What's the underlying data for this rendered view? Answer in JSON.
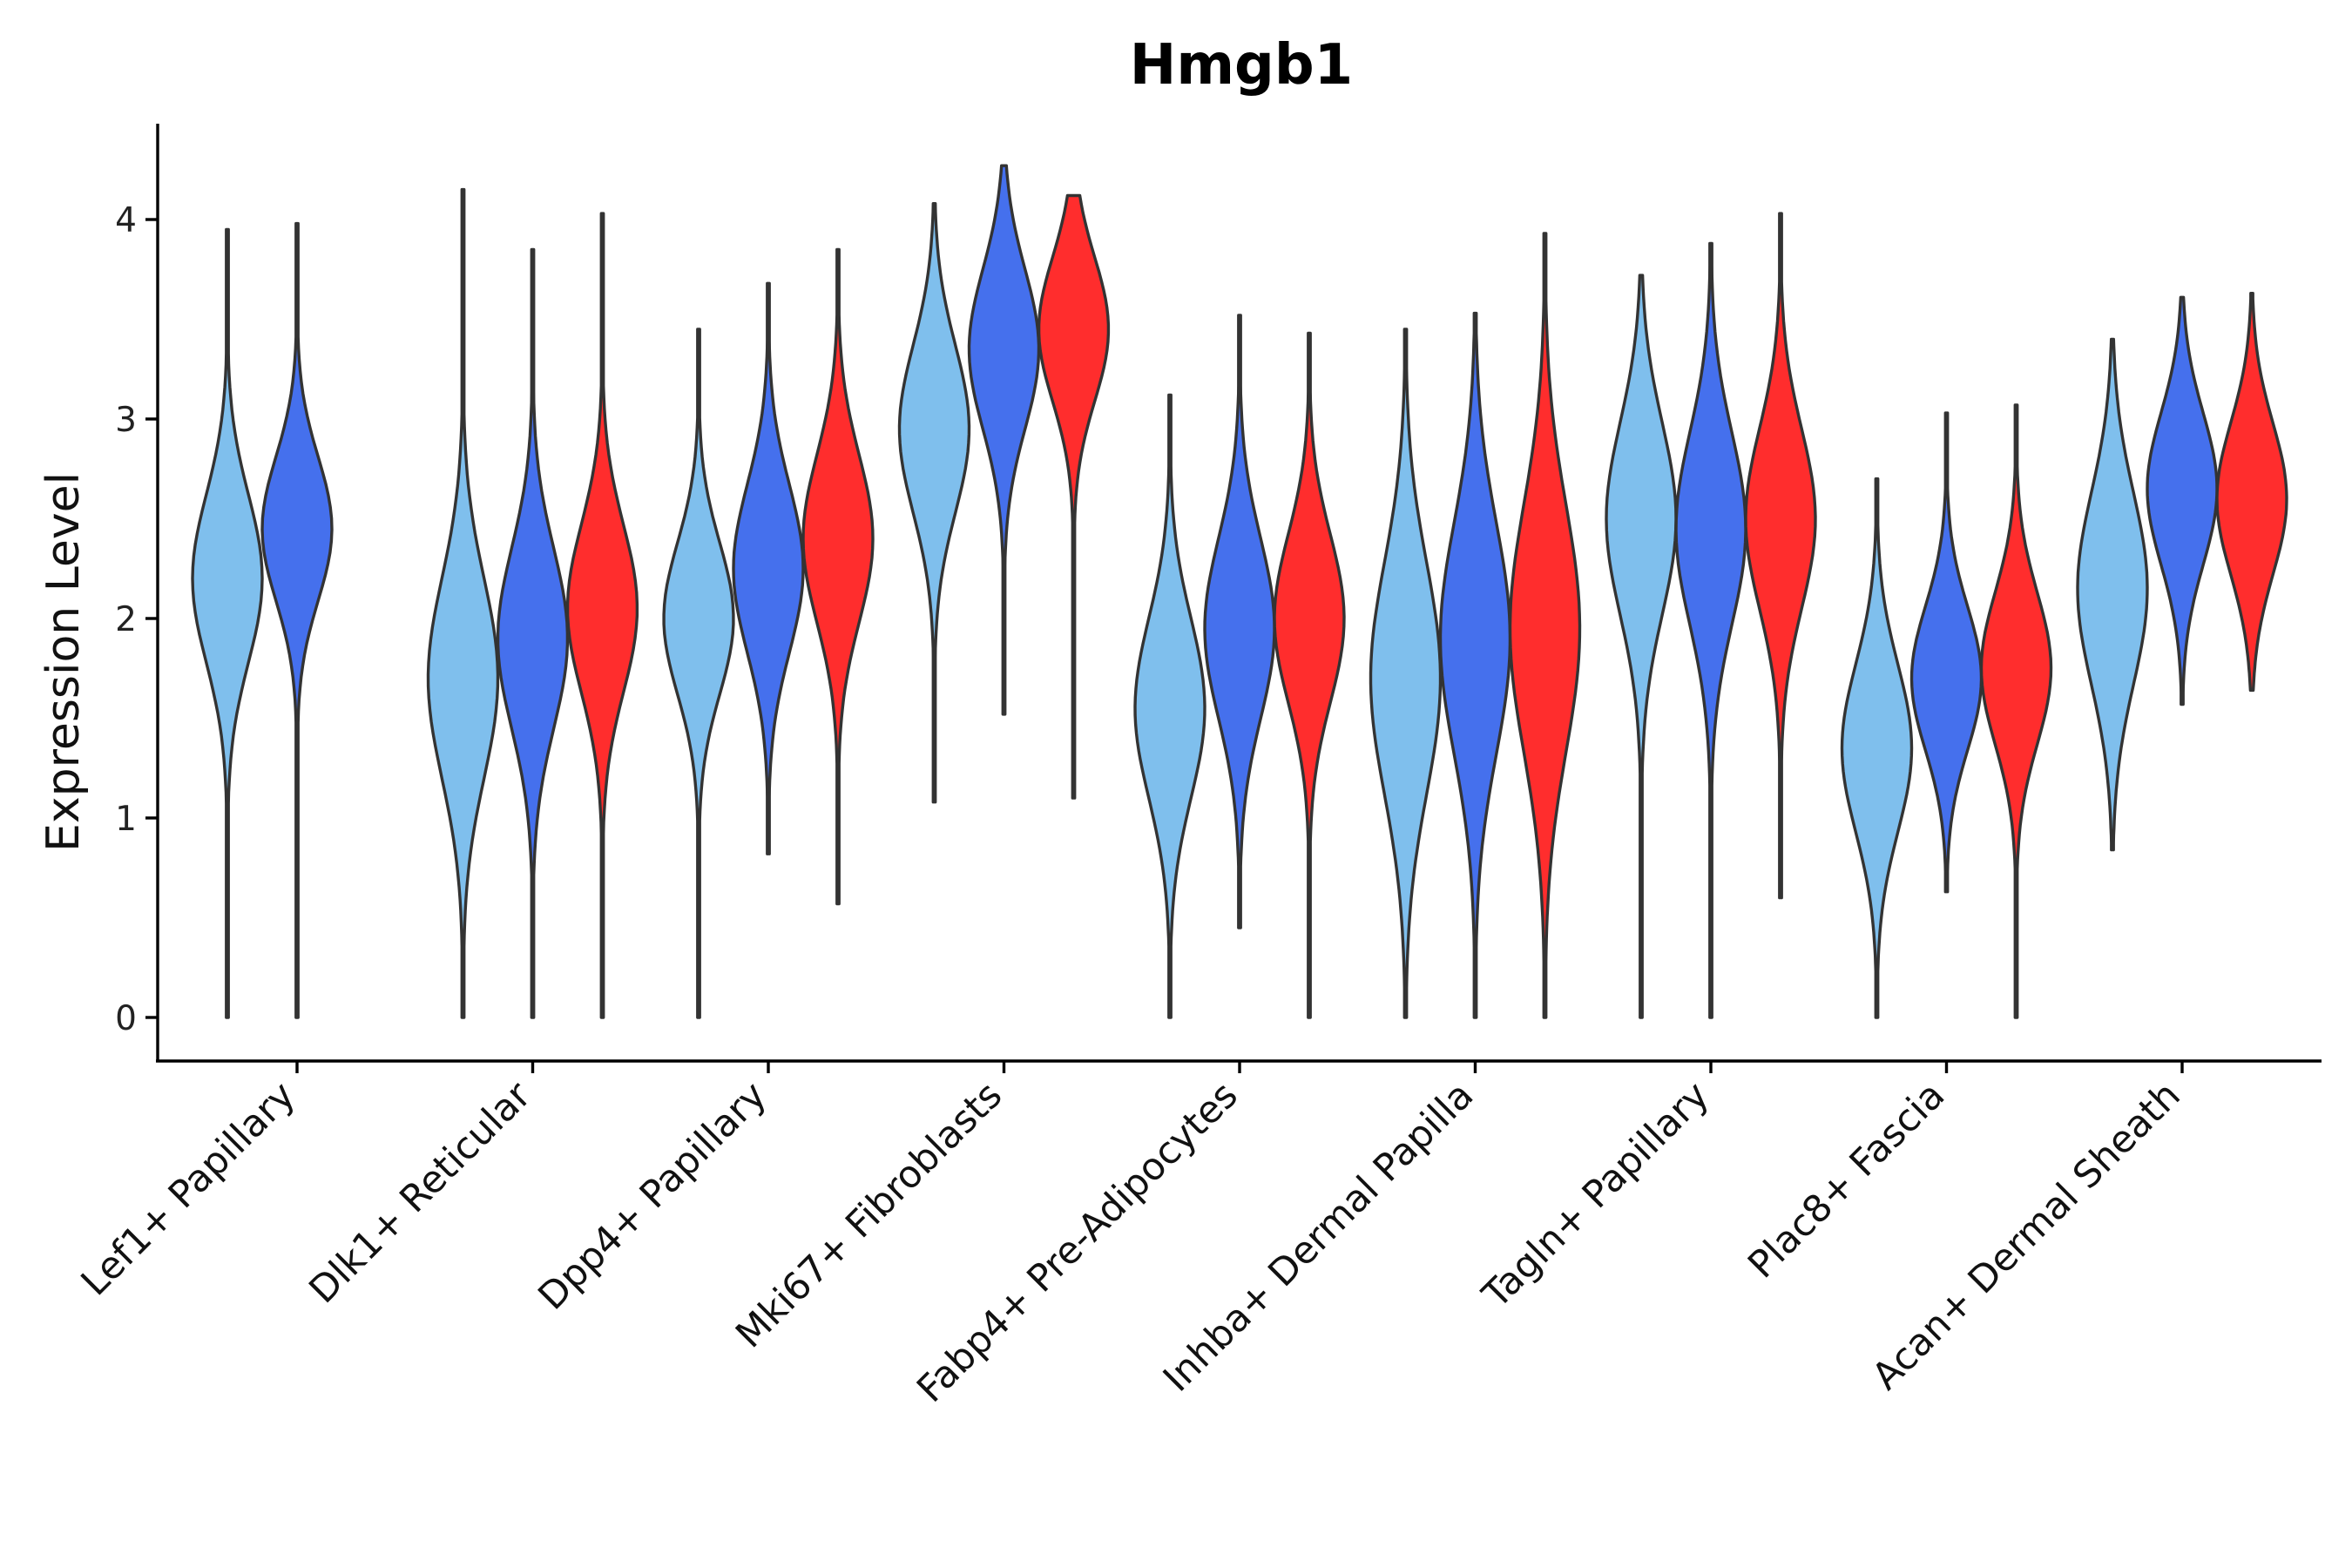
{
  "chart_data": {
    "type": "violin",
    "title": "Hmgb1",
    "xlabel": "",
    "ylabel": "Expression Level",
    "ylim": [
      -0.2,
      4.5
    ],
    "yticks": [
      0,
      1,
      2,
      3,
      4
    ],
    "grid": false,
    "legend": "none",
    "colors": [
      "#7fbfed",
      "#4570ed",
      "#ff2d2d"
    ],
    "categories": [
      "Lef1+ Papillary",
      "Dlk1+ Reticular",
      "Dpp4+ Papillary",
      "Mki67+ Fibroblasts",
      "Fabp4+ Pre-Adipocytes",
      "Inhba+ Dermal Papilla",
      "Tagln+ Papillary",
      "Plac8+ Fascia",
      "Acan+ Dermal Sheath"
    ],
    "violins": [
      {
        "category": 0,
        "group": 0,
        "min": 0,
        "max": 3.95,
        "mode": 2.2,
        "spread": 0.42
      },
      {
        "category": 0,
        "group": 1,
        "min": 0,
        "max": 3.98,
        "mode": 2.45,
        "spread": 0.36
      },
      {
        "category": 1,
        "group": 0,
        "min": 0,
        "max": 4.15,
        "mode": 1.7,
        "spread": 0.5
      },
      {
        "category": 1,
        "group": 1,
        "min": 0,
        "max": 3.85,
        "mode": 1.9,
        "spread": 0.45
      },
      {
        "category": 1,
        "group": 2,
        "min": 0,
        "max": 4.03,
        "mode": 2.05,
        "spread": 0.42
      },
      {
        "category": 2,
        "group": 0,
        "min": 0,
        "max": 3.45,
        "mode": 2.0,
        "spread": 0.38
      },
      {
        "category": 2,
        "group": 1,
        "min": 0.82,
        "max": 3.68,
        "mode": 2.25,
        "spread": 0.42
      },
      {
        "category": 2,
        "group": 2,
        "min": 0.57,
        "max": 3.85,
        "mode": 2.4,
        "spread": 0.42
      },
      {
        "category": 3,
        "group": 0,
        "min": 1.08,
        "max": 4.08,
        "mode": 2.95,
        "spread": 0.42
      },
      {
        "category": 3,
        "group": 1,
        "min": 1.52,
        "max": 4.27,
        "mode": 3.35,
        "spread": 0.4
      },
      {
        "category": 3,
        "group": 2,
        "min": 1.1,
        "max": 4.12,
        "mode": 3.45,
        "spread": 0.36
      },
      {
        "category": 4,
        "group": 0,
        "min": 0,
        "max": 3.12,
        "mode": 1.55,
        "spread": 0.45
      },
      {
        "category": 4,
        "group": 1,
        "min": 0.45,
        "max": 3.52,
        "mode": 1.95,
        "spread": 0.45
      },
      {
        "category": 4,
        "group": 2,
        "min": 0,
        "max": 3.43,
        "mode": 2.0,
        "spread": 0.42
      },
      {
        "category": 5,
        "group": 0,
        "min": 0,
        "max": 3.45,
        "mode": 1.7,
        "spread": 0.58
      },
      {
        "category": 5,
        "group": 1,
        "min": 0,
        "max": 3.53,
        "mode": 1.9,
        "spread": 0.58
      },
      {
        "category": 5,
        "group": 2,
        "min": 0,
        "max": 3.93,
        "mode": 1.95,
        "spread": 0.62
      },
      {
        "category": 6,
        "group": 0,
        "min": 0,
        "max": 3.72,
        "mode": 2.5,
        "spread": 0.48
      },
      {
        "category": 6,
        "group": 1,
        "min": 0,
        "max": 3.88,
        "mode": 2.45,
        "spread": 0.48
      },
      {
        "category": 6,
        "group": 2,
        "min": 0.6,
        "max": 4.03,
        "mode": 2.5,
        "spread": 0.45
      },
      {
        "category": 7,
        "group": 0,
        "min": 0,
        "max": 2.7,
        "mode": 1.35,
        "spread": 0.42
      },
      {
        "category": 7,
        "group": 1,
        "min": 0.63,
        "max": 3.03,
        "mode": 1.7,
        "spread": 0.36
      },
      {
        "category": 7,
        "group": 2,
        "min": 0,
        "max": 3.07,
        "mode": 1.75,
        "spread": 0.38
      },
      {
        "category": 8,
        "group": 0,
        "min": 0.84,
        "max": 3.4,
        "mode": 2.15,
        "spread": 0.48
      },
      {
        "category": 8,
        "group": 1,
        "min": 1.57,
        "max": 3.61,
        "mode": 2.65,
        "spread": 0.38
      },
      {
        "category": 8,
        "group": 2,
        "min": 1.64,
        "max": 3.63,
        "mode": 2.6,
        "spread": 0.38
      }
    ]
  }
}
